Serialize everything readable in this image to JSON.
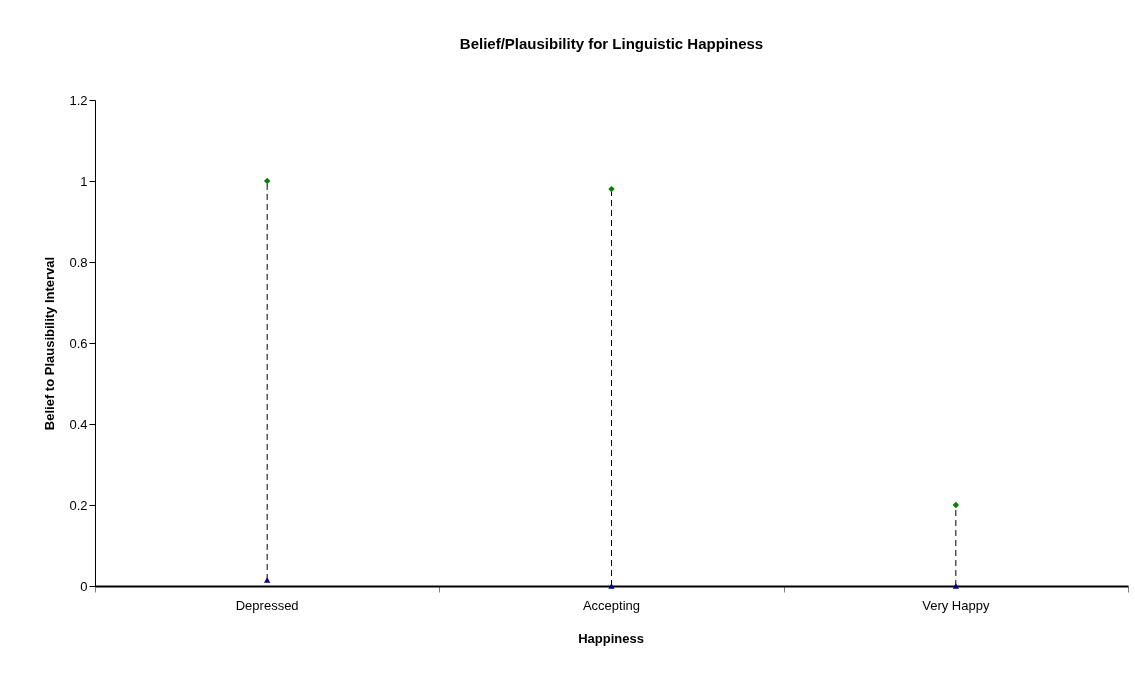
{
  "chart_data": {
    "type": "scatter",
    "title": "Belief/Plausibility for Linguistic Happiness",
    "xlabel": "Happiness",
    "ylabel": "Belief to Plausibility Interval",
    "categories": [
      "Depressed",
      "Accepting",
      "Very Happy"
    ],
    "series": [
      {
        "color": "#000080",
        "marker": "triangle",
        "values": [
          0.015,
          0,
          0
        ]
      },
      {
        "color": "#008000",
        "marker": "diamond",
        "values": [
          1,
          0.98,
          0.2
        ]
      }
    ],
    "ylim": [
      0,
      1.2
    ],
    "yticks": [
      0,
      0.2,
      0.4,
      0.6,
      0.8,
      1,
      1.2
    ]
  }
}
